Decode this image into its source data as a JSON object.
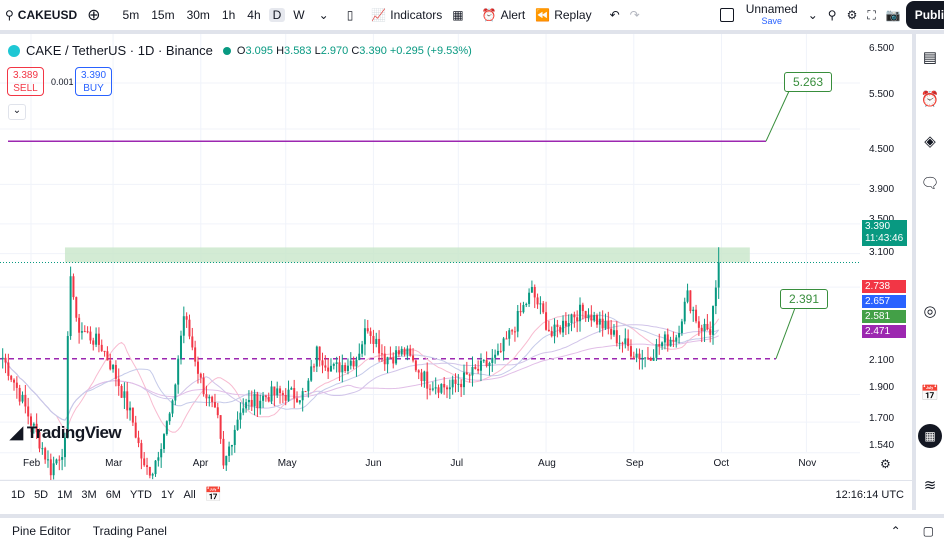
{
  "toolbar": {
    "symbol": "CAKEUSD",
    "intervals": [
      "5m",
      "15m",
      "30m",
      "1h",
      "4h",
      "D",
      "W"
    ],
    "active_interval": "D",
    "indicators": "Indicators",
    "alert": "Alert",
    "replay": "Replay",
    "layout_name": "Unnamed",
    "save": "Save",
    "publish": "Publish"
  },
  "legend": {
    "title": "CAKE / TetherUS · 1D · Binance",
    "o_label": "O",
    "o": "3.095",
    "h_label": "H",
    "h": "3.583",
    "l_label": "L",
    "l": "2.970",
    "c_label": "C",
    "c": "3.390",
    "change": "+0.295 (+9.53%)"
  },
  "trade": {
    "sell_price": "3.389",
    "sell": "SELL",
    "spread": "0.001",
    "buy_price": "3.390",
    "buy": "BUY"
  },
  "price_axis": [
    "6.500",
    "5.500",
    "4.500",
    "3.900",
    "3.500",
    "3.100",
    "2.100",
    "1.900",
    "1.700",
    "1.540"
  ],
  "current_price": {
    "price": "3.390",
    "countdown": "11:43:46",
    "color": "#089981"
  },
  "ma_tags": [
    {
      "v": "2.738",
      "color": "#f23645"
    },
    {
      "v": "2.657",
      "color": "#2962ff"
    },
    {
      "v": "2.581",
      "color": "#43a047"
    },
    {
      "v": "2.471",
      "color": "#9c27b0"
    }
  ],
  "time_axis": [
    "Feb",
    "Mar",
    "Apr",
    "May",
    "Jun",
    "Jul",
    "Aug",
    "Sep",
    "Oct",
    "Nov"
  ],
  "callouts": {
    "upper": "5.263",
    "lower": "2.391"
  },
  "watermark": "TradingView",
  "ranges": [
    "1D",
    "5D",
    "1M",
    "3M",
    "6M",
    "YTD",
    "1Y",
    "All"
  ],
  "clock": "12:16:14 UTC",
  "footer": {
    "pine": "Pine Editor",
    "panel": "Trading Panel"
  },
  "chart_data": {
    "type": "candlestick",
    "anchors": [
      [
        -10,
        2.4
      ],
      [
        0,
        1.9
      ],
      [
        7,
        1.6
      ],
      [
        12,
        1.75
      ],
      [
        14,
        3.3
      ],
      [
        16,
        2.7
      ],
      [
        25,
        2.5
      ],
      [
        29,
        2.3
      ],
      [
        36,
        1.9
      ],
      [
        40,
        1.6
      ],
      [
        43,
        1.6
      ],
      [
        50,
        2.0
      ],
      [
        54,
        2.8
      ],
      [
        60,
        2.2
      ],
      [
        66,
        1.9
      ],
      [
        68,
        1.6
      ],
      [
        74,
        2.0
      ],
      [
        84,
        2.1
      ],
      [
        97,
        2.1
      ],
      [
        101,
        2.45
      ],
      [
        107,
        2.3
      ],
      [
        115,
        2.4
      ],
      [
        119,
        2.7
      ],
      [
        125,
        2.4
      ],
      [
        132,
        2.45
      ],
      [
        140,
        2.2
      ],
      [
        148,
        2.15
      ],
      [
        155,
        2.25
      ],
      [
        165,
        2.4
      ],
      [
        170,
        2.65
      ],
      [
        177,
        3.05
      ],
      [
        184,
        2.6
      ],
      [
        191,
        2.8
      ],
      [
        196,
        2.85
      ],
      [
        206,
        2.6
      ],
      [
        213,
        2.45
      ],
      [
        217,
        2.4
      ],
      [
        224,
        2.55
      ],
      [
        228,
        2.6
      ],
      [
        232,
        3.0
      ],
      [
        236,
        2.7
      ],
      [
        240,
        2.65
      ],
      [
        242,
        3.095
      ],
      [
        243,
        3.39
      ]
    ],
    "resistance_zone": [
      3.39,
      3.58
    ],
    "upper_line": 5.263,
    "support_line": 2.391
  }
}
